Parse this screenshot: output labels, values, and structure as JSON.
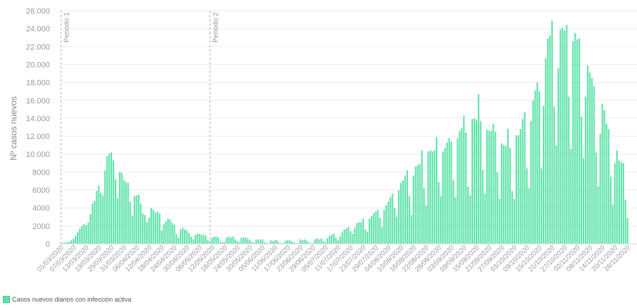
{
  "chart_data": {
    "type": "bar",
    "ylabel": "Nº casos nuevos",
    "ylim": [
      0,
      26000
    ],
    "yticks": [
      0,
      2000,
      4000,
      6000,
      8000,
      10000,
      12000,
      14000,
      16000,
      18000,
      20000,
      22000,
      24000,
      26000
    ],
    "ytick_labels": [
      "0",
      "2000",
      "4000",
      "6000",
      "8000",
      "10.000",
      "12.000",
      "14.000",
      "16.000",
      "18.000",
      "20.000",
      "22.000",
      "24.000",
      "26.000"
    ],
    "x_start": "2020-03-01",
    "x_end": "2020-11-30",
    "xtick_labels": [
      "01/03/2020",
      "07/03/2020",
      "13/03/2020",
      "19/03/2020",
      "25/03/2020",
      "31/03/2020",
      "06/04/2020",
      "12/04/2020",
      "18/04/2020",
      "24/04/2020",
      "30/04/2020",
      "06/05/2020",
      "12/05/2020",
      "18/05/2020",
      "24/05/2020",
      "30/05/2020",
      "05/06/2020",
      "11/06/2020",
      "17/06/2020",
      "23/06/2020",
      "29/06/2020",
      "05/07/2020",
      "11/07/2020",
      "17/07/2020",
      "23/07/2020",
      "29/07/2020",
      "04/08/2020",
      "10/08/2020",
      "16/08/2020",
      "22/08/2020",
      "28/08/2020",
      "03/09/2020",
      "09/09/2020",
      "15/09/2020",
      "21/09/2020",
      "27/09/2020",
      "03/10/2020",
      "09/10/2020",
      "15/10/2020",
      "21/10/2020",
      "27/10/2020",
      "02/11/2020",
      "08/11/2020",
      "14/11/2020",
      "20/11/2020",
      "26/11/2020"
    ],
    "annotations": [
      {
        "date": "2020-03-01",
        "label": "Periodo 1"
      },
      {
        "date": "2020-05-11",
        "label": "Periodo 2"
      }
    ],
    "series": [
      {
        "name": "Casos nuevos diarios con infección activa",
        "color": "#5ee3a8",
        "values": [
          100,
          120,
          150,
          180,
          250,
          400,
          600,
          900,
          1300,
          1700,
          2000,
          2200,
          2100,
          2400,
          3300,
          4500,
          4800,
          5900,
          6500,
          5700,
          5400,
          8200,
          9800,
          10100,
          10200,
          9300,
          7200,
          5100,
          8000,
          7900,
          7100,
          6900,
          6800,
          4700,
          3100,
          5300,
          5400,
          5500,
          4500,
          3400,
          3200,
          2400,
          2900,
          4000,
          3800,
          3500,
          3600,
          3400,
          1500,
          2200,
          2500,
          2800,
          2700,
          2300,
          2100,
          1100,
          700,
          1600,
          1800,
          1600,
          1500,
          1200,
          800,
          500,
          1000,
          1100,
          1100,
          1000,
          1000,
          900,
          400,
          300,
          700,
          800,
          800,
          700,
          200,
          200,
          200,
          700,
          800,
          700,
          800,
          500,
          300,
          200,
          700,
          700,
          700,
          600,
          400,
          200,
          150,
          500,
          450,
          500,
          500,
          200,
          100,
          100,
          400,
          300,
          400,
          400,
          150,
          100,
          100,
          350,
          400,
          400,
          300,
          150,
          100,
          100,
          500,
          400,
          500,
          400,
          200,
          100,
          100,
          500,
          600,
          500,
          600,
          300,
          200,
          600,
          900,
          1000,
          1100,
          700,
          400,
          800,
          1300,
          1600,
          1700,
          1900,
          1400,
          1100,
          1800,
          2300,
          2400,
          2400,
          2800,
          1600,
          1300,
          2800,
          3100,
          3400,
          3600,
          3800,
          2900,
          1900,
          3800,
          4300,
          4700,
          5200,
          5600,
          4000,
          3000,
          6000,
          6800,
          7100,
          7600,
          8200,
          5300,
          3200,
          7600,
          8600,
          8800,
          8900,
          10400,
          6200,
          4300,
          10300,
          10400,
          10300,
          10400,
          11900,
          6900,
          5300,
          10300,
          10700,
          11300,
          11800,
          11400,
          7100,
          5200,
          11800,
          12600,
          12900,
          14300,
          12400,
          6400,
          5400,
          13900,
          14000,
          13800,
          16700,
          13700,
          8300,
          5600,
          12700,
          12600,
          12600,
          13400,
          12500,
          8000,
          5000,
          11200,
          11000,
          10900,
          12800,
          10700,
          5900,
          5000,
          12100,
          12100,
          12800,
          13900,
          14700,
          8400,
          6200,
          13700,
          16000,
          17100,
          18000,
          17000,
          8400,
          15400,
          20700,
          22900,
          23200,
          24900,
          15300,
          11000,
          19600,
          23900,
          24100,
          23800,
          24400,
          16400,
          10600,
          22600,
          23500,
          22800,
          22900,
          14200,
          9600,
          16400,
          19900,
          19100,
          18500,
          17600,
          10200,
          6400,
          12300,
          15600,
          14900,
          13400,
          12800,
          7500,
          4400,
          9000,
          10400,
          9300,
          9100,
          9000,
          4900,
          2900
        ]
      }
    ]
  }
}
